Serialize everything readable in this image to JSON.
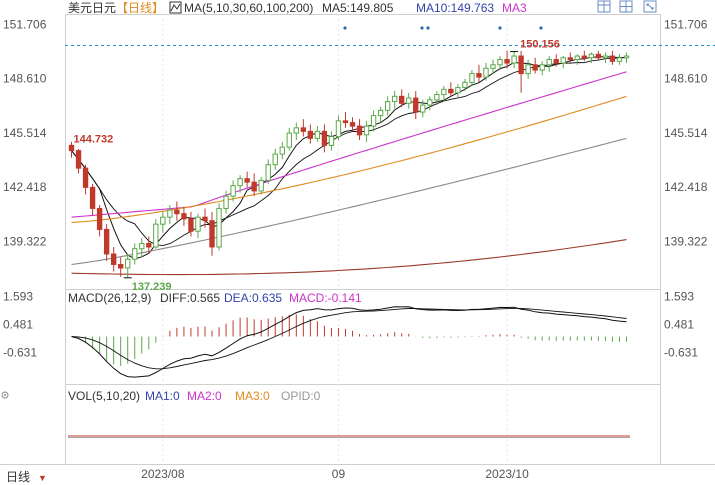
{
  "header": {
    "symbol": "美元日元",
    "period_label": "【日线】",
    "ma_legend": "MA(5,10,30,60,100,200)",
    "ma5": "MA5:149.805",
    "ma10": "MA10:149.763",
    "ma3": "MA3"
  },
  "toolbar": {
    "icons": [
      "layout-icon",
      "grid-icon",
      "maximize-icon"
    ]
  },
  "chart_data": [
    {
      "type": "candlestick",
      "panel": "price",
      "y_ticks": [
        "151.706",
        "148.610",
        "145.514",
        "142.418",
        "139.322"
      ],
      "y_tick_values": [
        151.706,
        148.61,
        145.514,
        142.418,
        139.322
      ],
      "ylim": [
        136.6,
        152.3
      ],
      "x_labels": [
        "2023/08",
        "09",
        "2023/10"
      ],
      "reference_line": 150.5,
      "annotations": [
        {
          "text": "150.156",
          "value": 150.156
        },
        {
          "text": "144.732",
          "value": 144.732
        },
        {
          "text": "137.239",
          "value": 137.239
        }
      ],
      "colors": {
        "up": "#5aa84a",
        "down": "#c0392b",
        "ma5": "#111111",
        "ma10": "#111111",
        "ma30": "#cc33cc",
        "ma60": "#e08a1e",
        "ma100": "#888888",
        "ma200": "#9b3b2b"
      },
      "candles": [
        [
          144.8,
          145.0,
          144.1,
          144.5
        ],
        [
          144.5,
          144.6,
          143.2,
          143.5
        ],
        [
          143.5,
          143.7,
          142.0,
          142.4
        ],
        [
          142.4,
          142.6,
          140.8,
          141.2
        ],
        [
          141.2,
          141.4,
          139.6,
          140.0
        ],
        [
          140.0,
          140.3,
          138.2,
          138.6
        ],
        [
          138.6,
          139.0,
          137.6,
          138.0
        ],
        [
          138.0,
          138.4,
          137.3,
          137.8
        ],
        [
          137.8,
          138.6,
          137.239,
          138.3
        ],
        [
          138.3,
          139.2,
          138.0,
          138.9
        ],
        [
          138.9,
          139.5,
          138.4,
          139.2
        ],
        [
          139.2,
          139.6,
          138.6,
          139.0
        ],
        [
          139.0,
          140.6,
          138.9,
          140.3
        ],
        [
          140.3,
          141.0,
          139.8,
          140.7
        ],
        [
          140.7,
          141.4,
          140.3,
          141.1
        ],
        [
          141.1,
          141.6,
          140.5,
          140.9
        ],
        [
          140.9,
          141.3,
          140.2,
          140.6
        ],
        [
          140.6,
          141.0,
          139.6,
          139.9
        ],
        [
          139.9,
          140.9,
          139.5,
          140.7
        ],
        [
          140.7,
          141.2,
          140.1,
          140.5
        ],
        [
          140.5,
          141.0,
          138.5,
          139.0
        ],
        [
          139.0,
          141.5,
          138.8,
          141.2
        ],
        [
          141.2,
          142.2,
          140.9,
          141.9
        ],
        [
          141.9,
          142.8,
          141.6,
          142.5
        ],
        [
          142.5,
          143.1,
          142.1,
          142.9
        ],
        [
          142.9,
          143.3,
          142.4,
          142.7
        ],
        [
          142.7,
          143.2,
          141.9,
          142.2
        ],
        [
          142.2,
          143.0,
          142.0,
          142.8
        ],
        [
          142.8,
          144.0,
          142.6,
          143.7
        ],
        [
          143.7,
          144.6,
          143.4,
          144.3
        ],
        [
          144.3,
          145.0,
          144.0,
          144.7
        ],
        [
          144.7,
          145.8,
          144.5,
          145.5
        ],
        [
          145.5,
          146.1,
          145.1,
          145.8
        ],
        [
          145.8,
          146.3,
          145.3,
          145.6
        ],
        [
          145.6,
          146.0,
          144.9,
          145.2
        ],
        [
          145.2,
          145.9,
          145.0,
          145.6
        ],
        [
          145.6,
          146.0,
          144.4,
          144.8
        ],
        [
          144.8,
          145.6,
          144.5,
          145.3
        ],
        [
          145.3,
          146.5,
          145.1,
          146.2
        ],
        [
          146.2,
          146.7,
          145.8,
          146.1
        ],
        [
          146.1,
          146.4,
          145.6,
          145.9
        ],
        [
          145.9,
          146.3,
          145.1,
          145.4
        ],
        [
          145.4,
          146.2,
          145.0,
          145.9
        ],
        [
          145.9,
          146.8,
          145.6,
          146.5
        ],
        [
          146.5,
          147.0,
          146.1,
          146.8
        ],
        [
          146.8,
          147.6,
          146.5,
          147.3
        ],
        [
          147.3,
          147.9,
          146.9,
          147.6
        ],
        [
          147.6,
          148.0,
          147.0,
          147.2
        ],
        [
          147.2,
          147.8,
          146.9,
          147.5
        ],
        [
          147.5,
          147.9,
          146.3,
          146.7
        ],
        [
          146.7,
          147.4,
          146.4,
          147.1
        ],
        [
          147.1,
          147.6,
          146.8,
          147.4
        ],
        [
          147.4,
          147.9,
          147.1,
          147.7
        ],
        [
          147.7,
          148.2,
          147.3,
          148.0
        ],
        [
          148.0,
          148.4,
          147.6,
          147.8
        ],
        [
          147.8,
          148.3,
          147.5,
          148.1
        ],
        [
          148.1,
          148.6,
          147.9,
          148.4
        ],
        [
          148.4,
          149.1,
          148.2,
          148.9
        ],
        [
          148.9,
          149.4,
          148.4,
          148.7
        ],
        [
          148.7,
          149.5,
          148.5,
          149.2
        ],
        [
          149.2,
          149.7,
          148.9,
          149.4
        ],
        [
          149.4,
          149.9,
          149.1,
          149.7
        ],
        [
          149.7,
          150.2,
          149.2,
          149.5
        ],
        [
          149.5,
          150.156,
          149.2,
          149.9
        ],
        [
          149.9,
          150.2,
          147.8,
          148.9
        ],
        [
          148.9,
          149.7,
          148.6,
          149.4
        ],
        [
          149.4,
          149.8,
          148.9,
          149.1
        ],
        [
          149.1,
          149.6,
          148.8,
          149.4
        ],
        [
          149.4,
          149.9,
          149.0,
          149.7
        ],
        [
          149.7,
          150.0,
          149.3,
          149.5
        ],
        [
          149.5,
          149.9,
          149.2,
          149.8
        ],
        [
          149.8,
          150.1,
          149.5,
          149.7
        ],
        [
          149.7,
          150.0,
          149.4,
          149.9
        ],
        [
          149.9,
          150.2,
          149.6,
          149.8
        ],
        [
          149.8,
          150.1,
          149.5,
          150.0
        ],
        [
          150.0,
          150.2,
          149.7,
          149.8
        ],
        [
          149.8,
          150.1,
          149.5,
          149.9
        ],
        [
          149.9,
          150.2,
          149.4,
          149.6
        ],
        [
          149.6,
          150.0,
          149.4,
          149.8
        ],
        [
          149.8,
          150.1,
          149.5,
          149.9
        ]
      ]
    },
    {
      "type": "line",
      "panel": "macd",
      "legend": [
        "MACD(26,12,9)",
        "DIFF:0.565",
        "DEA:0.635",
        "MACD:-0.141"
      ],
      "y_ticks": [
        "1.593",
        "0.481",
        "-0.631"
      ],
      "y_tick_values": [
        1.593,
        0.481,
        -0.631
      ],
      "ylim": [
        -1.9,
        1.9
      ],
      "colors": {
        "diff": "#111111",
        "dea": "#111111",
        "hist_up": "#c0392b",
        "hist_down": "#5aa84a"
      }
    },
    {
      "type": "bar",
      "panel": "volume",
      "legend": [
        "VOL(5,10,20)",
        "MA1:0",
        "MA2:0",
        "MA3:0",
        "OPID:0"
      ],
      "legend_colors": [
        "#333333",
        "#3344aa",
        "#cc33cc",
        "#e08a1e",
        "#999999"
      ]
    }
  ],
  "footer": {
    "period_tab": "日线",
    "period_tab_arrow": "▼"
  }
}
